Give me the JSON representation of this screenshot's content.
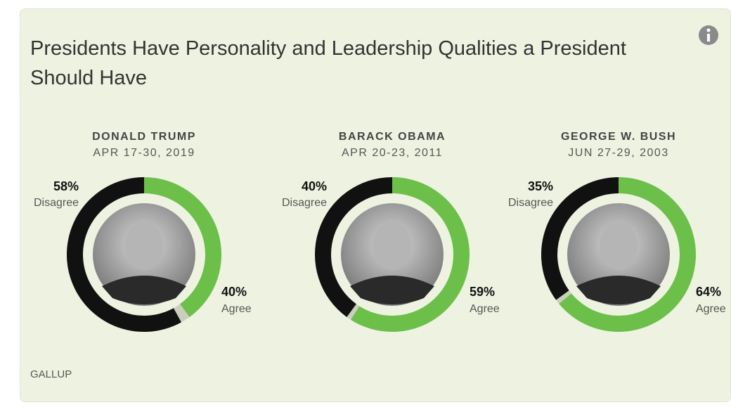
{
  "title": "Presidents Have Personality and Leadership Qualities a President Should Have",
  "source": "GALLUP",
  "chart_data": [
    {
      "type": "donut",
      "title": "DONALD TRUMP",
      "subtitle": "APR 17-30, 2019",
      "categories": [
        "Disagree",
        "Agree"
      ],
      "values": [
        58,
        40
      ],
      "value_labels": [
        "58%",
        "40%"
      ],
      "colors": [
        "#111111",
        "#6cc04a"
      ]
    },
    {
      "type": "donut",
      "title": "BARACK OBAMA",
      "subtitle": "APR 20-23, 2011",
      "categories": [
        "Disagree",
        "Agree"
      ],
      "values": [
        40,
        59
      ],
      "value_labels": [
        "40%",
        "59%"
      ],
      "colors": [
        "#111111",
        "#6cc04a"
      ]
    },
    {
      "type": "donut",
      "title": "GEORGE W. BUSH",
      "subtitle": "JUN 27-29, 2003",
      "categories": [
        "Disagree",
        "Agree"
      ],
      "values": [
        35,
        64
      ],
      "value_labels": [
        "35%",
        "64%"
      ],
      "colors": [
        "#111111",
        "#6cc04a"
      ]
    }
  ]
}
